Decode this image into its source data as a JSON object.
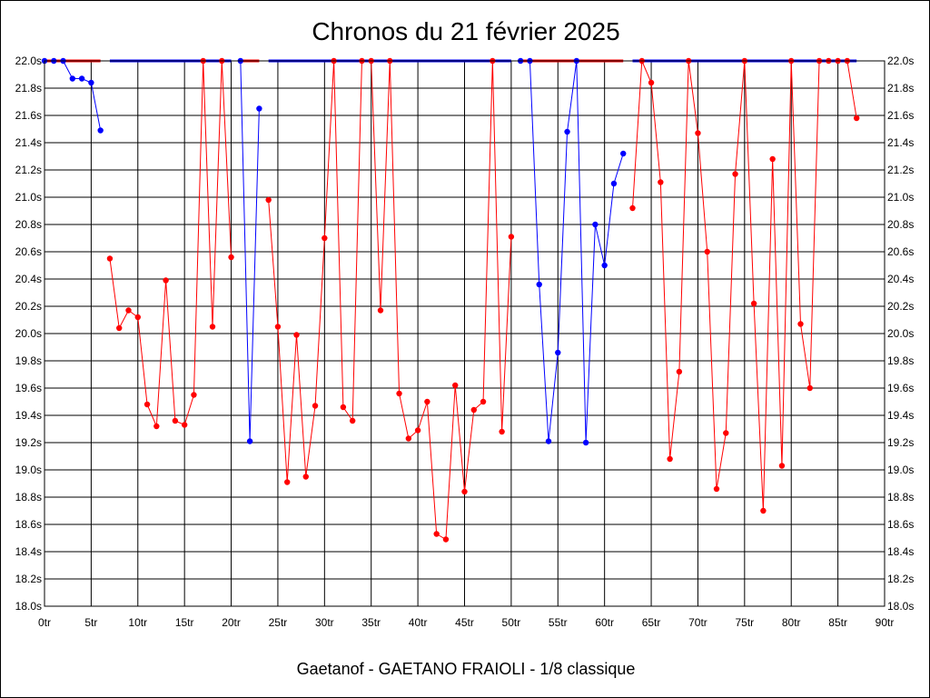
{
  "chart_data": {
    "type": "line",
    "title": "Chronos du 21 février 2025",
    "subtitle": "Gaetanof - GAETANO FRAIOLI - 1/8 classique",
    "xlabel": "",
    "ylabel": "",
    "xlim": [
      0,
      90
    ],
    "ylim": [
      18.0,
      22.0
    ],
    "grid": true,
    "x_ticks": [
      0,
      5,
      10,
      15,
      20,
      25,
      30,
      35,
      40,
      45,
      50,
      55,
      60,
      65,
      70,
      75,
      80,
      85,
      90
    ],
    "x_tick_labels": [
      "0tr",
      "5tr",
      "10tr",
      "15tr",
      "20tr",
      "25tr",
      "30tr",
      "35tr",
      "40tr",
      "45tr",
      "50tr",
      "55tr",
      "60tr",
      "65tr",
      "70tr",
      "75tr",
      "80tr",
      "85tr",
      "90tr"
    ],
    "y_ticks": [
      18.0,
      18.2,
      18.4,
      18.6,
      18.8,
      19.0,
      19.2,
      19.4,
      19.6,
      19.8,
      20.0,
      20.2,
      20.4,
      20.6,
      20.8,
      21.0,
      21.2,
      21.4,
      21.6,
      21.8,
      22.0
    ],
    "y_tick_labels": [
      "18.0s",
      "18.2s",
      "18.4s",
      "18.6s",
      "18.8s",
      "19.0s",
      "19.2s",
      "19.4s",
      "19.6s",
      "19.8s",
      "20.0s",
      "20.2s",
      "20.4s",
      "20.6s",
      "20.8s",
      "21.0s",
      "21.2s",
      "21.4s",
      "21.6s",
      "21.8s",
      "22.0s"
    ],
    "colors": {
      "blue": "#0000ff",
      "red": "#ff0000"
    },
    "series": [
      {
        "color": "blue",
        "x": [
          0,
          1,
          2,
          3,
          4,
          5,
          6
        ],
        "values": [
          22.0,
          22.0,
          22.0,
          21.87,
          21.87,
          21.84,
          21.49
        ]
      },
      {
        "color": "red",
        "x": [
          7,
          8,
          9,
          10,
          11,
          12,
          13,
          14,
          15,
          16,
          17,
          18,
          19,
          20
        ],
        "values": [
          20.55,
          20.04,
          20.17,
          20.12,
          19.48,
          19.32,
          20.39,
          19.36,
          19.33,
          19.55,
          22.0,
          20.05,
          22.0,
          20.56
        ]
      },
      {
        "color": "blue",
        "x": [
          21,
          22,
          23
        ],
        "values": [
          22.0,
          19.21,
          21.65
        ]
      },
      {
        "color": "red",
        "x": [
          24,
          25,
          26,
          27,
          28,
          29,
          30,
          31,
          32,
          33,
          34,
          35,
          36,
          37,
          38,
          39,
          40,
          41,
          42,
          43,
          44,
          45,
          46,
          47,
          48,
          49,
          50
        ],
        "values": [
          20.98,
          20.05,
          18.91,
          19.99,
          18.95,
          19.47,
          20.7,
          22.0,
          19.46,
          19.36,
          22.0,
          22.0,
          20.17,
          22.0,
          19.56,
          19.23,
          19.29,
          19.5,
          18.53,
          18.49,
          19.62,
          18.84,
          19.44,
          19.5,
          22.0,
          19.28,
          20.71
        ]
      },
      {
        "color": "blue",
        "x": [
          51,
          52,
          53,
          54,
          55,
          56,
          57,
          58,
          59,
          60,
          61,
          62
        ],
        "values": [
          22.0,
          22.0,
          20.36,
          19.21,
          19.86,
          21.48,
          22.0,
          19.2,
          20.8,
          20.5,
          21.1,
          21.32
        ]
      },
      {
        "color": "red",
        "x": [
          63,
          64,
          65,
          66,
          67,
          68,
          69,
          70,
          71,
          72,
          73,
          74,
          75,
          76,
          77,
          78,
          79,
          80,
          81,
          82,
          83,
          84,
          85,
          86,
          87
        ],
        "values": [
          20.92,
          22.0,
          21.84,
          21.11,
          19.08,
          19.72,
          22.0,
          21.47,
          20.6,
          18.86,
          19.27,
          21.17,
          22.0,
          20.22,
          18.7,
          21.28,
          19.03,
          22.0,
          20.07,
          19.6,
          22.0,
          22.0,
          22.0,
          22.0,
          21.58
        ]
      }
    ],
    "top_bands": [
      {
        "color": "red",
        "x": [
          0,
          6
        ]
      },
      {
        "color": "blue",
        "x": [
          7,
          20
        ]
      },
      {
        "color": "red",
        "x": [
          21,
          23
        ]
      },
      {
        "color": "blue",
        "x": [
          24,
          50
        ]
      },
      {
        "color": "red",
        "x": [
          51,
          62
        ]
      },
      {
        "color": "blue",
        "x": [
          63,
          87
        ]
      }
    ]
  }
}
